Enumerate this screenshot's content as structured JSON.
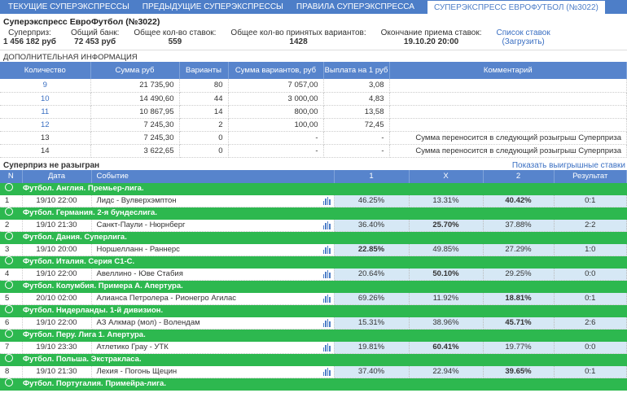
{
  "tabs": [
    "ТЕКУЩИЕ СУПЕРЭКСПРЕССЫ",
    "ПРЕДЫДУЩИЕ СУПЕРЭКСПРЕССЫ",
    "ПРАВИЛА СУПЕРЭКСПРЕССА",
    "СУПЕРЭКСПРЕСС ЕВРОФУТБОЛ (№3022)"
  ],
  "title": "Суперэкспресс ЕвроФутбол (№3022)",
  "info": {
    "superprize_label": "Суперприз:",
    "superprize": "1 456 182 руб",
    "bank_label": "Общий банк:",
    "bank": "72 453 руб",
    "bets_label": "Общее кол-во ставок:",
    "bets": "559",
    "variants_label": "Общее кол-во принятых вариантов:",
    "variants": "1428",
    "end_label": "Окончание приема ставок:",
    "end": "19.10.20 20:00",
    "list_label": "Список ставок",
    "load_label": "(Загрузить)"
  },
  "extra_title": "ДОПОЛНИТЕЛЬНАЯ ИНФОРМАЦИЯ",
  "extra": {
    "headers": [
      "Количество",
      "Сумма руб",
      "Варианты",
      "Сумма вариантов, руб",
      "Выплата на 1 руб",
      "Комментарий"
    ],
    "rows": [
      [
        "9",
        "21 735,90",
        "80",
        "7 057,00",
        "3,08",
        ""
      ],
      [
        "10",
        "14 490,60",
        "44",
        "3 000,00",
        "4,83",
        ""
      ],
      [
        "11",
        "10 867,95",
        "14",
        "800,00",
        "13,58",
        ""
      ],
      [
        "12",
        "7 245,30",
        "2",
        "100,00",
        "72,45",
        ""
      ],
      [
        "13",
        "7 245,30",
        "0",
        "-",
        "-",
        "Сумма переносится в следующий розыгрыш Суперприза"
      ],
      [
        "14",
        "3 622,65",
        "0",
        "-",
        "-",
        "Сумма переносится в следующий розыгрыш Суперприза"
      ]
    ]
  },
  "status": "Суперприз не разыгран",
  "show_winning": "Показать выигрышные ставки",
  "matches_headers": [
    "N",
    "Дата",
    "Событие",
    "1",
    "X",
    "2",
    "Результат"
  ],
  "matches": [
    {
      "league": "Футбол. Англия. Премьер-лига.",
      "n": "1",
      "date": "19/10 22:00",
      "event": "Лидс - Вулверхэмптон",
      "p1": "46.25%",
      "px": "13.31%",
      "p2": "40.42%",
      "result": "0:1",
      "bold": 2
    },
    {
      "league": "Футбол. Германия. 2-я бундеслига.",
      "n": "2",
      "date": "19/10 21:30",
      "event": "Санкт-Паули - Нюрнберг",
      "p1": "36.40%",
      "px": "25.70%",
      "p2": "37.88%",
      "result": "2:2",
      "bold": 1
    },
    {
      "league": "Футбол. Дания. Суперлига.",
      "n": "3",
      "date": "19/10 20:00",
      "event": "Норшелланн - Раннерс",
      "p1": "22.85%",
      "px": "49.85%",
      "p2": "27.29%",
      "result": "1:0",
      "bold": 0
    },
    {
      "league": "Футбол. Италия. Серия C1-C.",
      "n": "4",
      "date": "19/10 22:00",
      "event": "Авеллино - Юве Стабия",
      "p1": "20.64%",
      "px": "50.10%",
      "p2": "29.25%",
      "result": "0:0",
      "bold": 1
    },
    {
      "league": "Футбол. Колумбия. Примера А. Апертура.",
      "n": "5",
      "date": "20/10 02:00",
      "event": "Алианса Петролера - Рионегро Агилас",
      "p1": "69.26%",
      "px": "11.92%",
      "p2": "18.81%",
      "result": "0:1",
      "bold": 2
    },
    {
      "league": "Футбол. Нидерланды. 1-й дивизион.",
      "n": "6",
      "date": "19/10 22:00",
      "event": "АЗ Алкмар (мол) - Волендам",
      "p1": "15.31%",
      "px": "38.96%",
      "p2": "45.71%",
      "result": "2:6",
      "bold": 2
    },
    {
      "league": "Футбол. Перу. Лига 1. Апертура.",
      "n": "7",
      "date": "19/10 23:30",
      "event": "Атлетико Грау - УТК",
      "p1": "19.81%",
      "px": "60.41%",
      "p2": "19.77%",
      "result": "0:0",
      "bold": 1
    },
    {
      "league": "Футбол. Польша. Экстракласа.",
      "n": "8",
      "date": "19/10 21:30",
      "event": "Лехия - Погонь Щецин",
      "p1": "37.40%",
      "px": "22.94%",
      "p2": "39.65%",
      "result": "0:1",
      "bold": 2
    },
    {
      "league": "Футбол. Португалия. Примейра-лига."
    }
  ]
}
